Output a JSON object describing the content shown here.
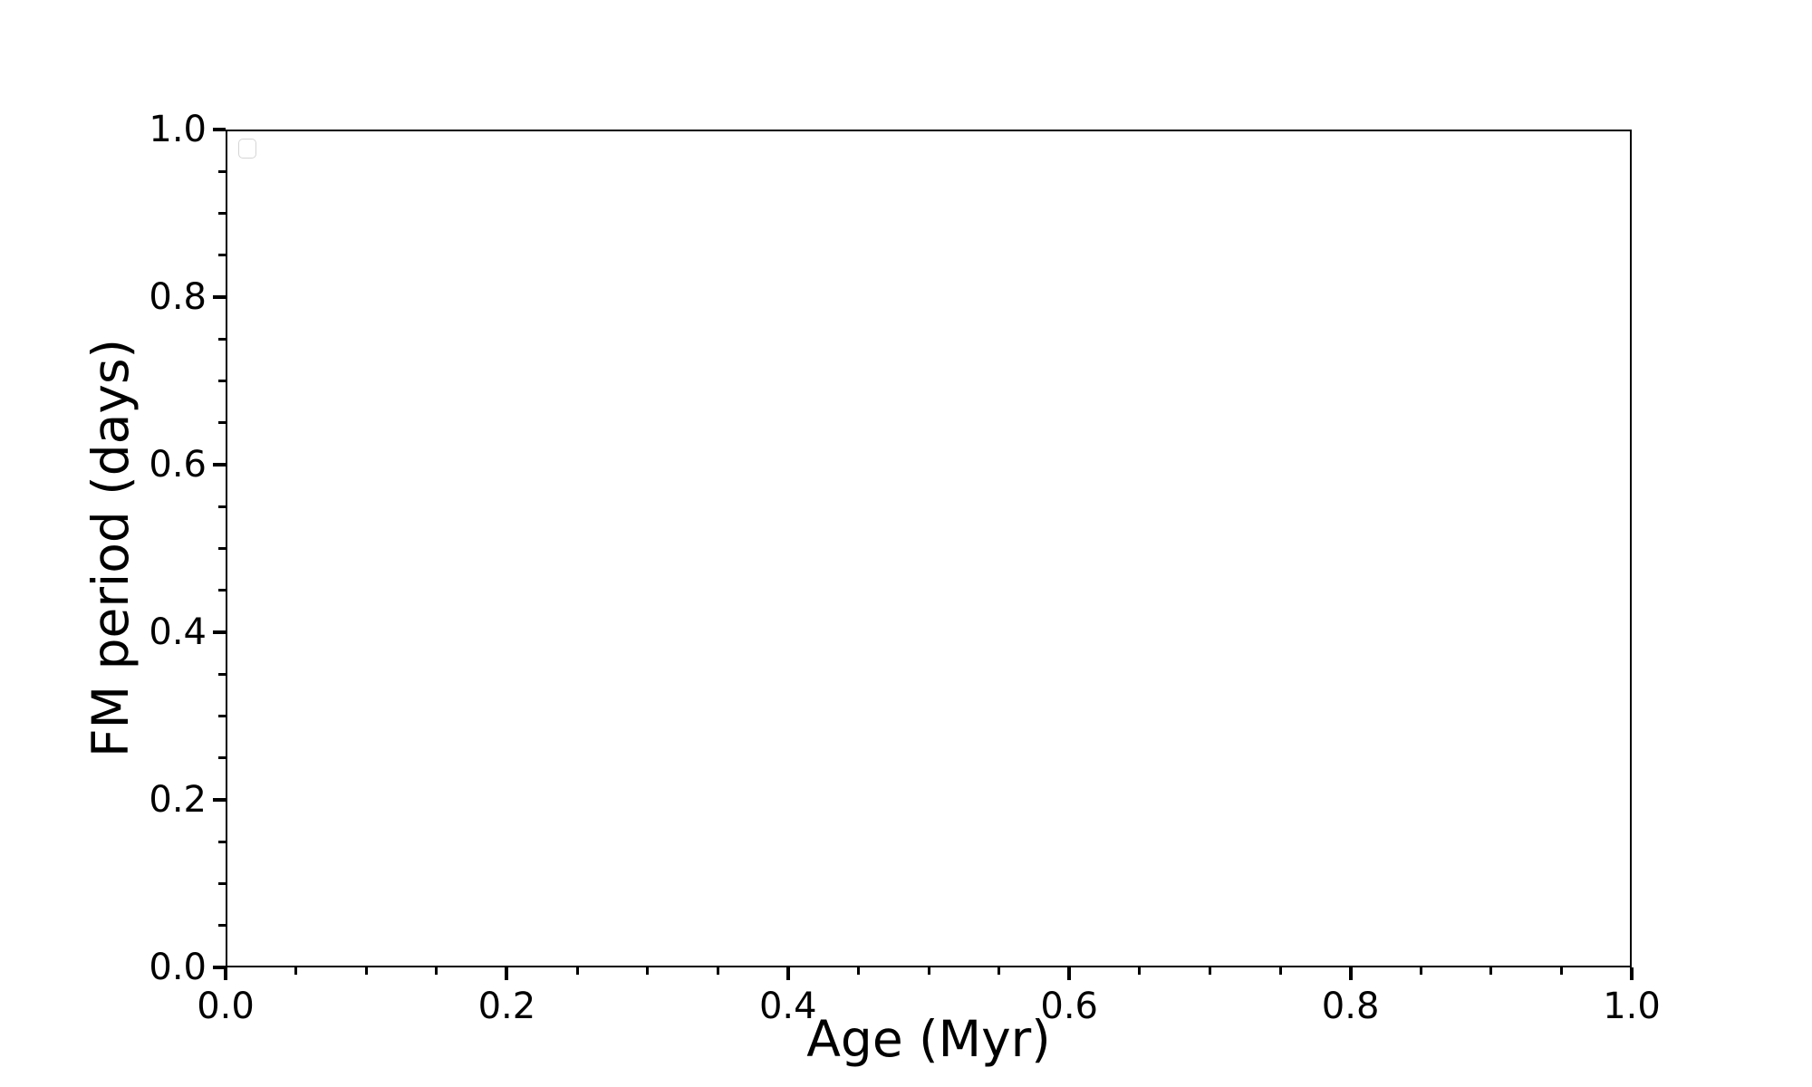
{
  "chart_data": {
    "type": "scatter",
    "title": "",
    "xlabel": "Age (Myr)",
    "ylabel": "FM period (days)",
    "xlim": [
      0.0,
      1.0
    ],
    "ylim": [
      0.0,
      1.0
    ],
    "x_major_ticks": [
      0.0,
      0.2,
      0.4,
      0.6,
      0.8,
      1.0
    ],
    "x_tick_labels": [
      "0.0",
      "0.2",
      "0.4",
      "0.6",
      "0.8",
      "1.0"
    ],
    "y_major_ticks": [
      0.0,
      0.2,
      0.4,
      0.6,
      0.8,
      1.0
    ],
    "y_tick_labels": [
      "0.0",
      "0.2",
      "0.4",
      "0.6",
      "0.8",
      "1.0"
    ],
    "minor_tick_step": 0.05,
    "grid": false,
    "legend": {
      "visible": true,
      "entries": [],
      "position": "upper left"
    },
    "series": []
  },
  "colors": {
    "background": "#ffffff",
    "axis": "#000000",
    "text": "#000000",
    "legend_border": "#d5d5d5"
  }
}
